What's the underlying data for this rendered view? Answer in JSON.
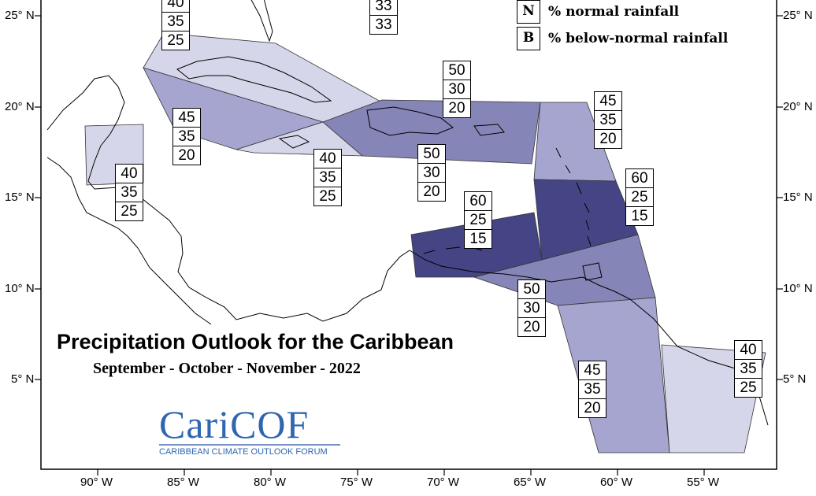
{
  "title": "Precipitation Outlook for the Caribbean",
  "subtitle": "September - October - November - 2022",
  "legend": [
    {
      "key": "N",
      "label": "% normal rainfall"
    },
    {
      "key": "B",
      "label": "% below-normal rainfall"
    }
  ],
  "logo": {
    "name": "CariCOF",
    "tagline": "CARIBBEAN CLIMATE OUTLOOK FORUM"
  },
  "latitude_labels": [
    "25° N",
    "20° N",
    "15° N",
    "10° N",
    "5° N"
  ],
  "longitude_labels": [
    "90° W",
    "85° W",
    "80° W",
    "75° W",
    "70° W",
    "65° W",
    "60° W",
    "55° W"
  ],
  "colors": {
    "light": "#d6d6ea",
    "medium_light": "#a5a5cf",
    "medium": "#8585b7",
    "medium_dark": "#6b6ba5",
    "dark": "#454585",
    "coastline": "#000000",
    "logo_blue": "#2f66b0"
  },
  "regions": [
    {
      "id": "bahamas-north",
      "probabilities": [
        "40",
        "35",
        "25"
      ],
      "shade": "light"
    },
    {
      "id": "turks-caicos",
      "probabilities": [
        "33",
        "33"
      ],
      "shade": "light"
    },
    {
      "id": "cuba",
      "probabilities": [
        "45",
        "35",
        "20"
      ],
      "shade": "medium_light"
    },
    {
      "id": "belize",
      "probabilities": [
        "40",
        "35",
        "25"
      ],
      "shade": "light"
    },
    {
      "id": "jamaica",
      "probabilities": [
        "40",
        "35",
        "25"
      ],
      "shade": "light"
    },
    {
      "id": "hispaniola-puerto-rico",
      "probabilities": [
        "50",
        "30",
        "20"
      ],
      "shade": "medium"
    },
    {
      "id": "hispaniola-south",
      "probabilities": [
        "50",
        "30",
        "20"
      ],
      "shade": "medium"
    },
    {
      "id": "leeward-islands",
      "probabilities": [
        "45",
        "35",
        "20"
      ],
      "shade": "medium_light"
    },
    {
      "id": "windward-islands",
      "probabilities": [
        "60",
        "25",
        "15"
      ],
      "shade": "dark"
    },
    {
      "id": "abc-islands",
      "probabilities": [
        "60",
        "25",
        "15"
      ],
      "shade": "dark"
    },
    {
      "id": "trinidad",
      "probabilities": [
        "50",
        "30",
        "20"
      ],
      "shade": "medium"
    },
    {
      "id": "guyana",
      "probabilities": [
        "45",
        "35",
        "20"
      ],
      "shade": "medium_light"
    },
    {
      "id": "suriname-french-guiana",
      "probabilities": [
        "40",
        "35",
        "25"
      ],
      "shade": "light"
    }
  ]
}
